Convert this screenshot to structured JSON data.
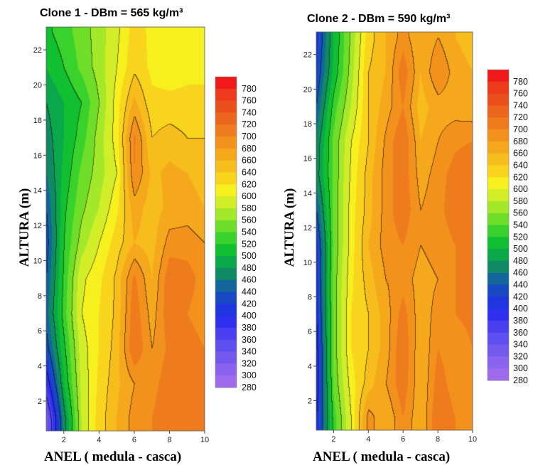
{
  "chart_data": [
    {
      "type": "heatmap",
      "subtype": "filled-contour",
      "title": "Clone 1 - DBm = 565 kg/m³",
      "xlabel": "ANEL  ( medula - casca)",
      "ylabel": "ALTURA (m)",
      "xlim": [
        1,
        10
      ],
      "ylim": [
        0.3,
        23.3
      ],
      "xticks": [
        2,
        4,
        6,
        8,
        10
      ],
      "yticks": [
        2,
        4,
        6,
        8,
        10,
        12,
        14,
        16,
        18,
        20,
        22
      ],
      "x": [
        1,
        2,
        3,
        4,
        5,
        6,
        7,
        8,
        9,
        10
      ],
      "y": [
        1,
        3,
        5,
        7,
        9,
        11,
        13,
        15,
        17,
        19,
        21,
        23
      ],
      "z": [
        [
          320,
          470,
          580,
          630,
          660,
          690,
          700,
          720,
          710,
          700
        ],
        [
          380,
          500,
          585,
          625,
          655,
          680,
          690,
          715,
          705,
          700
        ],
        [
          430,
          515,
          590,
          620,
          650,
          720,
          680,
          705,
          710,
          700
        ],
        [
          450,
          530,
          600,
          620,
          645,
          715,
          670,
          715,
          700,
          690
        ],
        [
          440,
          525,
          595,
          615,
          645,
          705,
          660,
          715,
          710,
          690
        ],
        [
          430,
          520,
          570,
          600,
          630,
          660,
          650,
          690,
          690,
          680
        ],
        [
          440,
          515,
          555,
          580,
          615,
          670,
          650,
          665,
          670,
          660
        ],
        [
          460,
          505,
          545,
          570,
          600,
          700,
          655,
          665,
          660,
          650
        ],
        [
          470,
          500,
          530,
          570,
          610,
          705,
          640,
          650,
          640,
          640
        ],
        [
          480,
          500,
          520,
          560,
          610,
          665,
          625,
          625,
          625,
          625
        ],
        [
          500,
          520,
          545,
          570,
          600,
          635,
          615,
          610,
          615,
          615
        ],
        [
          515,
          530,
          550,
          570,
          595,
          630,
          615,
          610,
          615,
          615
        ]
      ],
      "colorbar": {
        "ticks": [
          "780",
          "760",
          "740",
          "720",
          "700",
          "680",
          "660",
          "640",
          "620",
          "600",
          "580",
          "560",
          "540",
          "520",
          "500",
          "480",
          "460",
          "440",
          "420",
          "400",
          "380",
          "360",
          "340",
          "320",
          "300",
          "280"
        ],
        "min": 280,
        "max": 800
      }
    },
    {
      "type": "heatmap",
      "subtype": "filled-contour",
      "title": "Clone 2 - DBm = 590 kg/m³",
      "xlabel": "ANEL  ( medula - casca)",
      "ylabel": "ALTURA (m)",
      "xlim": [
        1,
        10
      ],
      "ylim": [
        0.3,
        23.3
      ],
      "xticks": [
        2,
        4,
        6,
        8,
        10
      ],
      "yticks": [
        2,
        4,
        6,
        8,
        10,
        12,
        14,
        16,
        18,
        20,
        22
      ],
      "x": [
        1,
        2,
        3,
        4,
        5,
        6,
        7,
        8,
        9,
        10
      ],
      "y": [
        1,
        3,
        5,
        7,
        9,
        11,
        13,
        15,
        17,
        19,
        21,
        23
      ],
      "z": [
        [
          400,
          530,
          600,
          690,
          660,
          700,
          660,
          720,
          700,
          690
        ],
        [
          385,
          545,
          610,
          650,
          680,
          715,
          660,
          710,
          690,
          700
        ],
        [
          390,
          550,
          620,
          640,
          670,
          720,
          660,
          700,
          690,
          700
        ],
        [
          400,
          550,
          620,
          640,
          670,
          710,
          665,
          690,
          700,
          705
        ],
        [
          405,
          550,
          615,
          650,
          680,
          690,
          670,
          680,
          700,
          710
        ],
        [
          410,
          545,
          610,
          660,
          690,
          700,
          680,
          690,
          700,
          715
        ],
        [
          440,
          545,
          610,
          650,
          690,
          715,
          680,
          695,
          710,
          720
        ],
        [
          470,
          545,
          605,
          650,
          690,
          715,
          670,
          690,
          710,
          720
        ],
        [
          465,
          545,
          600,
          640,
          685,
          720,
          660,
          680,
          695,
          700
        ],
        [
          440,
          530,
          580,
          640,
          670,
          700,
          650,
          670,
          670,
          665
        ],
        [
          420,
          505,
          570,
          640,
          660,
          715,
          660,
          700,
          670,
          660
        ],
        [
          410,
          500,
          565,
          630,
          660,
          690,
          660,
          680,
          660,
          650
        ]
      ],
      "colorbar": {
        "ticks": [
          "780",
          "760",
          "740",
          "720",
          "700",
          "680",
          "660",
          "640",
          "620",
          "600",
          "580",
          "560",
          "540",
          "520",
          "500",
          "480",
          "460",
          "440",
          "420",
          "400",
          "380",
          "360",
          "340",
          "320",
          "300",
          "280"
        ],
        "min": 280,
        "max": 800
      }
    }
  ],
  "palette": [
    [
      280,
      "#a06aef"
    ],
    [
      300,
      "#8a64f0"
    ],
    [
      320,
      "#7459ee"
    ],
    [
      340,
      "#5d4ff0"
    ],
    [
      360,
      "#4a3ff0"
    ],
    [
      380,
      "#2f2ff0"
    ],
    [
      400,
      "#1f35e0"
    ],
    [
      420,
      "#1848c4"
    ],
    [
      440,
      "#12669c"
    ],
    [
      460,
      "#0f8a64"
    ],
    [
      480,
      "#0aa84a"
    ],
    [
      500,
      "#10c030"
    ],
    [
      520,
      "#39d22c"
    ],
    [
      540,
      "#6ede28"
    ],
    [
      560,
      "#a4e82a"
    ],
    [
      580,
      "#d2ee28"
    ],
    [
      600,
      "#f6f01e"
    ],
    [
      620,
      "#f8d41c"
    ],
    [
      640,
      "#f7bd1c"
    ],
    [
      660,
      "#f5a81c"
    ],
    [
      680,
      "#f2921c"
    ],
    [
      700,
      "#ef7c1c"
    ],
    [
      720,
      "#ec661e"
    ],
    [
      740,
      "#ea4f1c"
    ],
    [
      760,
      "#ec3a1a"
    ],
    [
      780,
      "#f01818"
    ]
  ]
}
